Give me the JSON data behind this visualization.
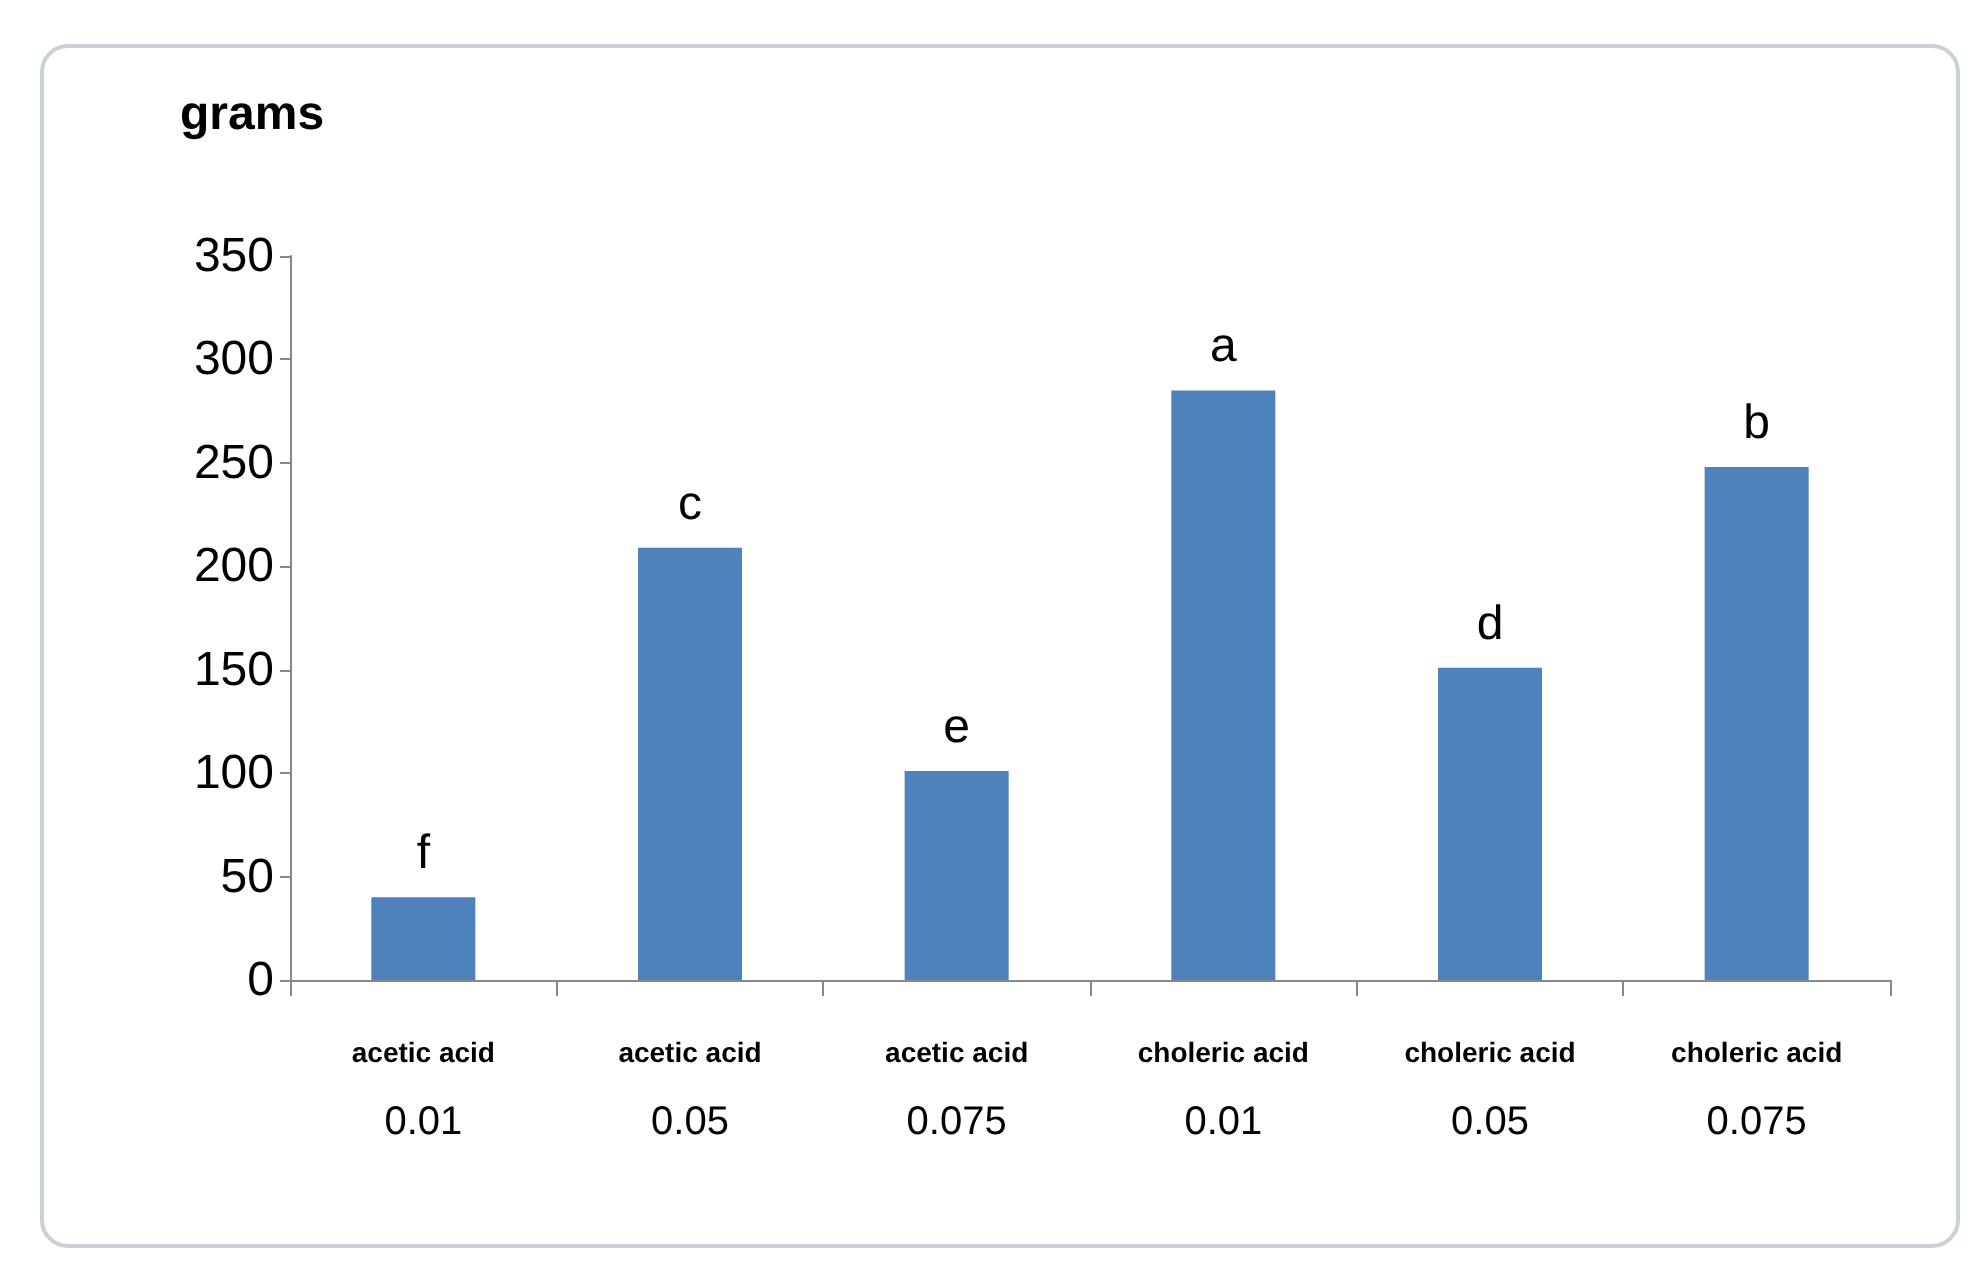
{
  "chart_data": {
    "type": "bar",
    "ylabel": "grams",
    "categories": [
      "acetic acid\n0.01",
      "acetic acid\n0.05",
      "acetic acid\n0.075",
      "choleric acid\n0.01",
      "choleric acid\n0.05",
      "choleric acid\n0.075"
    ],
    "values": [
      40,
      209,
      101,
      285,
      151,
      248
    ],
    "color": "#4f81bd",
    "ylim": [
      0,
      350
    ],
    "yticks": [
      0,
      50,
      100,
      150,
      200,
      250,
      300,
      350
    ],
    "grid": false,
    "annotations": [
      {
        "text": "f",
        "x": "acetic acid\n0.01",
        "y": 40
      },
      {
        "text": "c",
        "x": "acetic acid\n0.05",
        "y": 209
      },
      {
        "text": "e",
        "x": "acetic acid\n0.075",
        "y": 101
      },
      {
        "text": "a",
        "x": "choleric acid\n0.01",
        "y": 285
      },
      {
        "text": "d",
        "x": "choleric acid\n0.05",
        "y": 151
      },
      {
        "text": "b",
        "x": "choleric acid\n0.075",
        "y": 248
      }
    ]
  }
}
